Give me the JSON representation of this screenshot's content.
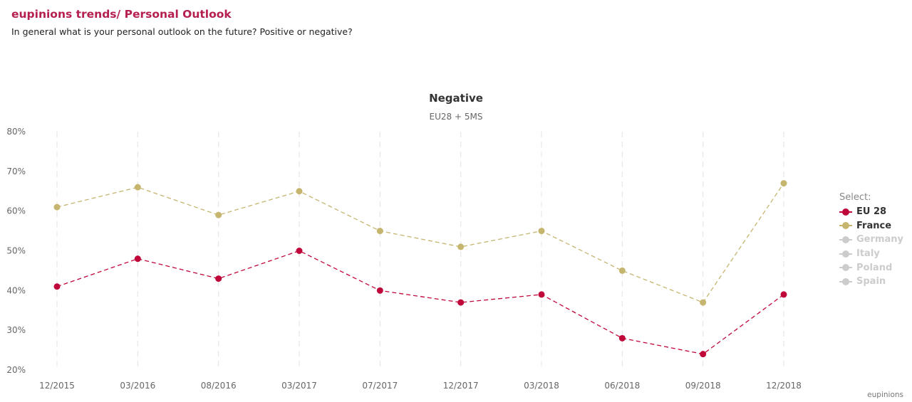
{
  "header": {
    "title": "eupinions trends/ Personal Outlook",
    "subtitle": "In general what is your personal outlook on the future? Positive or negative?"
  },
  "legend": {
    "title": "Select:",
    "items": [
      {
        "label": "EU 28",
        "color": "#c0073a",
        "active": true
      },
      {
        "label": "France",
        "color": "#c5b56f",
        "active": true
      },
      {
        "label": "Germany",
        "color": "#cccccc",
        "active": false
      },
      {
        "label": "Italy",
        "color": "#cccccc",
        "active": false
      },
      {
        "label": "Poland",
        "color": "#cccccc",
        "active": false
      },
      {
        "label": "Spain",
        "color": "#cccccc",
        "active": false
      }
    ]
  },
  "footer": {
    "brand": "eupinions"
  },
  "chart_data": {
    "type": "line",
    "title": "Negative",
    "subtitle": "EU28 + 5MS",
    "categories": [
      "12/2015",
      "03/2016",
      "08/2016",
      "03/2017",
      "07/2017",
      "12/2017",
      "03/2018",
      "06/2018",
      "09/2018",
      "12/2018"
    ],
    "y_ticks": [
      "20%",
      "30%",
      "40%",
      "50%",
      "60%",
      "70%",
      "80%"
    ],
    "ylim": [
      20,
      80
    ],
    "grid": "vertical dashed",
    "legend_position": "right",
    "series": [
      {
        "name": "EU 28",
        "color": "#c0073a",
        "values": [
          41,
          48,
          43,
          50,
          40,
          37,
          39,
          28,
          24,
          39
        ]
      },
      {
        "name": "France",
        "color": "#c5b56f",
        "values": [
          61,
          66,
          59,
          65,
          55,
          51,
          55,
          45,
          37,
          67
        ]
      }
    ]
  }
}
